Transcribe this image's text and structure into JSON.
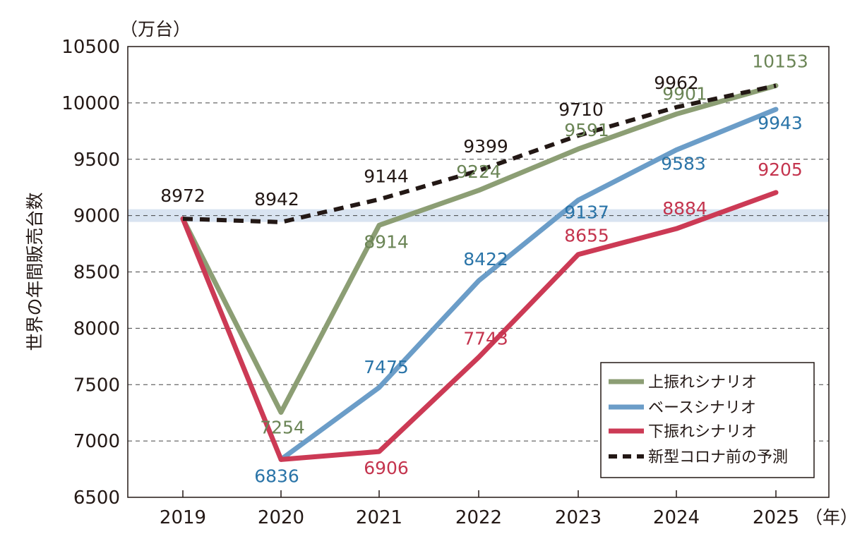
{
  "chart_data": {
    "type": "line",
    "y_unit": "（万台）",
    "x_unit": "（年）",
    "ylabel": "世界の年間販売台数",
    "ylim": [
      6500,
      10500
    ],
    "yticks": [
      6500,
      7000,
      7500,
      8000,
      8500,
      9000,
      9500,
      10000,
      10500
    ],
    "ytick_labels": [
      "6500",
      "7000",
      "7500",
      "8000",
      "8500",
      "9000",
      "9500",
      "10000",
      "10500"
    ],
    "categories": [
      "2019",
      "2020",
      "2021",
      "2022",
      "2023",
      "2024",
      "2025"
    ],
    "highlight_y": 9000,
    "series": [
      {
        "name": "上振れシナリオ",
        "color": "#8c9e74",
        "label_color": "#6b8556",
        "dashed": false,
        "values": [
          8972,
          7254,
          8914,
          9224,
          9591,
          9901,
          10153
        ],
        "labels": [
          "",
          "7254",
          "8914",
          "9224",
          "9591",
          "9901",
          "10153"
        ]
      },
      {
        "name": "ベースシナリオ",
        "color": "#6b9dc8",
        "label_color": "#2a74a8",
        "dashed": false,
        "values": [
          null,
          6836,
          7475,
          8422,
          9137,
          9583,
          9943
        ],
        "labels": [
          "",
          "6836",
          "7475",
          "8422",
          "9137",
          "9583",
          "9943"
        ]
      },
      {
        "name": "下振れシナリオ",
        "color": "#cc3a55",
        "label_color": "#c4344e",
        "dashed": false,
        "values": [
          8972,
          6836,
          6906,
          7743,
          8655,
          8884,
          9205
        ],
        "labels": [
          "",
          "",
          "6906",
          "7743",
          "8655",
          "8884",
          "9205"
        ]
      },
      {
        "name": "新型コロナ前の予測",
        "color": "#231815",
        "label_color": "#231815",
        "dashed": true,
        "values": [
          8972,
          8942,
          9144,
          9399,
          9710,
          9962,
          10153
        ],
        "labels": [
          "8972",
          "8942",
          "9144",
          "9399",
          "9710",
          "9962",
          ""
        ]
      }
    ]
  }
}
